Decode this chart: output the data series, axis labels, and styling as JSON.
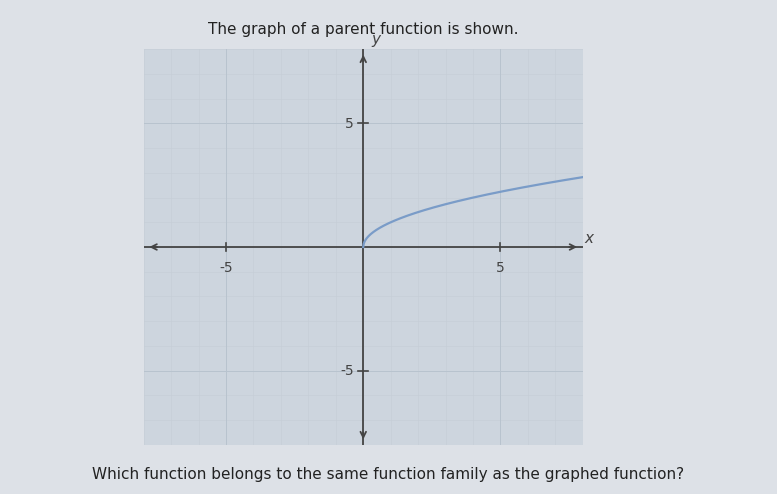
{
  "title": "The graph of a parent function is shown.",
  "question": "Which function belongs to the same function family as the graphed function?",
  "xlabel": "x",
  "ylabel": "y",
  "xlim": [
    -8,
    8
  ],
  "ylim": [
    -8,
    8
  ],
  "xticks": [
    -5,
    5
  ],
  "yticks": [
    -5,
    5
  ],
  "curve_color": "#7a9cc8",
  "curve_linewidth": 1.6,
  "plot_bg_color": "#cdd5de",
  "outer_bg_color": "#dde1e7",
  "grid_major_color": "#b8c3ce",
  "grid_minor_color": "#c5cdd6",
  "axis_color": "#444444",
  "title_fontsize": 11,
  "question_fontsize": 11,
  "tick_fontsize": 10,
  "label_fontsize": 11
}
